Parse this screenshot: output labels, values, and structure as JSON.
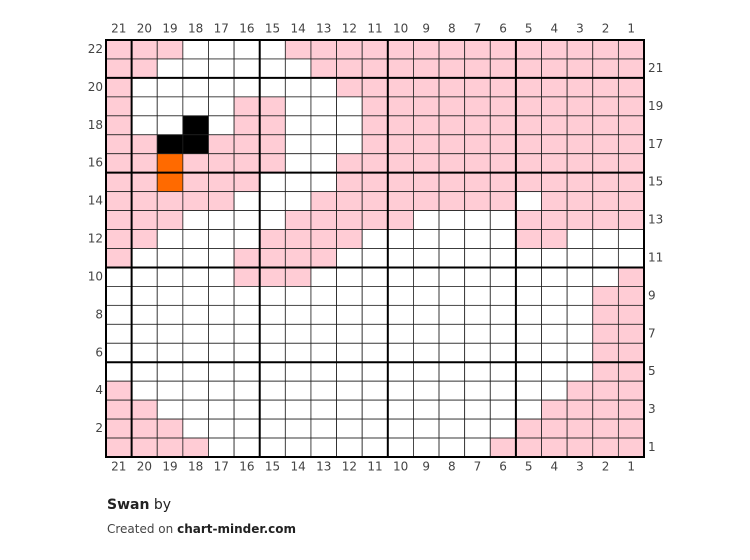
{
  "title": "Swan",
  "by": "by",
  "created_on": "Created on",
  "site": "chart-minder.com",
  "column_labels": [
    21,
    20,
    19,
    18,
    17,
    16,
    15,
    14,
    13,
    12,
    11,
    10,
    9,
    8,
    7,
    6,
    5,
    4,
    3,
    2,
    1
  ],
  "left_row_labels": [
    22,
    20,
    18,
    16,
    14,
    12,
    10,
    8,
    6,
    4,
    2
  ],
  "right_row_labels": [
    21,
    19,
    17,
    15,
    13,
    11,
    9,
    7,
    5,
    3,
    1
  ],
  "palette": {
    "p": "#ffccd5",
    "w": "#ffffff",
    "k": "#000000",
    "o": "#ff6a00"
  },
  "grid_rows": [
    "pppwwwwpppppppppppppp",
    "ppwwwwwwppppppppppppp",
    "pwwwwwwwwpppppppppppp",
    "pwwwwppwwwppppppppppp",
    "pwwkwppwwwppppppppppp",
    "ppkkpppwwwppppppppppp",
    "ppoppppwwpppppppppppp",
    "ppopppwwwpppppppppppp",
    "pppppwwwppppppppwpppp",
    "pppwwwwpppppwwwwppppp",
    "ppwwwwppppwwwwwwppwww",
    "pwwwwppppwwwwwwwwwwww",
    "wwwwwpppwwwwwwwwwwwwp",
    "wwwwwwwwwwwwwwwwwwwpp",
    "wwwwwwwwwwwwwwwwwwwpp",
    "wwwwwwwwwwwwwwwwwwwpp",
    "wwwwwwwwwwwwwwwwwwwpp",
    "wwwwwwwwwwwwwwwwwwwpp",
    "pwwwwwwwwwwwwwwwwwppp",
    "ppwwwwwwwwwwwwwwwpppp",
    "pppwwwwwwwwwwwwwppppp",
    "ppppwwwwwwwwwwwpppppp"
  ]
}
